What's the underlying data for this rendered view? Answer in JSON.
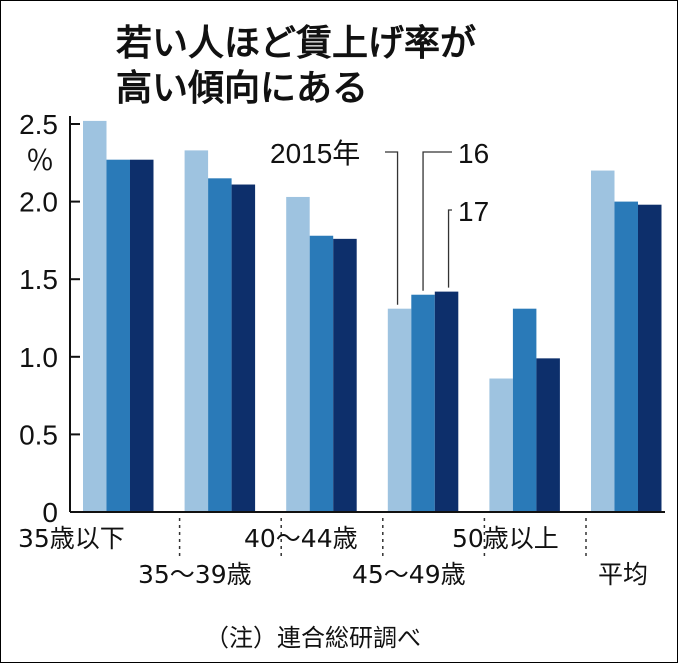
{
  "chart_data": {
    "type": "bar",
    "title_lines": [
      "若い人ほど賃上げ率が",
      "高い傾向にある"
    ],
    "ylabel": "％",
    "ylim": [
      0,
      2.5
    ],
    "yticks": [
      "0",
      "0.5",
      "1.0",
      "1.5",
      "2.0",
      "2.5"
    ],
    "categories": [
      "35歳以下",
      "35～39歳",
      "40～44歳",
      "45～49歳",
      "50歳以上",
      "平均"
    ],
    "series": [
      {
        "name": "2015年",
        "color": "#9ec3e0",
        "values": [
          2.52,
          2.33,
          2.03,
          1.31,
          0.86,
          2.2
        ]
      },
      {
        "name": "16",
        "color": "#2a7ab8",
        "values": [
          2.27,
          2.15,
          1.78,
          1.4,
          1.31,
          2.0
        ]
      },
      {
        "name": "17",
        "color": "#0d2f6b",
        "values": [
          2.27,
          2.11,
          1.76,
          1.42,
          0.99,
          1.98
        ]
      }
    ],
    "legend_placement": "annotated-over-45-49",
    "grid": false
  },
  "note": "（注）連合総研調べ"
}
